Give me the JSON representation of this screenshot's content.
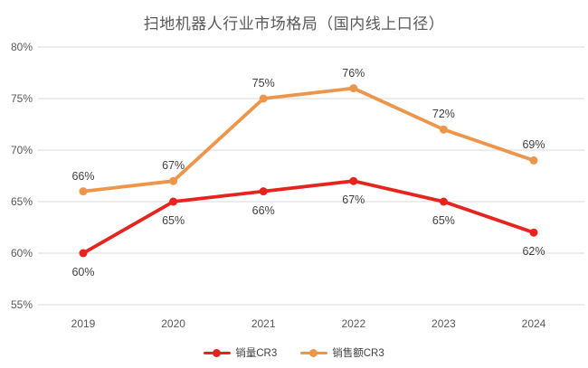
{
  "chart_data": {
    "type": "line",
    "title": "扫地机器人行业市场格局（国内线上口径）",
    "xlabel": "",
    "ylabel": "",
    "categories": [
      "2019",
      "2020",
      "2021",
      "2022",
      "2023",
      "2024"
    ],
    "series": [
      {
        "id": "sales-volume-cr3",
        "name": "销量CR3",
        "color": "#e7231e",
        "values": [
          60,
          65,
          66,
          67,
          65,
          62
        ],
        "data_labels": [
          "60%",
          "65%",
          "66%",
          "67%",
          "65%",
          "62%"
        ],
        "label_position": "below"
      },
      {
        "id": "sales-value-cr3",
        "name": "销售额CR3",
        "color": "#ed964b",
        "values": [
          66,
          67,
          75,
          76,
          72,
          69
        ],
        "data_labels": [
          "66%",
          "67%",
          "75%",
          "76%",
          "72%",
          "69%"
        ],
        "label_position": "above"
      }
    ],
    "ylim": [
      55,
      80
    ],
    "yticks": [
      {
        "value": 80,
        "label": "80%"
      },
      {
        "value": 75,
        "label": "75%"
      },
      {
        "value": 70,
        "label": "70%"
      },
      {
        "value": 65,
        "label": "65%"
      },
      {
        "value": 60,
        "label": "60%"
      },
      {
        "value": 55,
        "label": "55%"
      }
    ],
    "grid": true,
    "legend_position": "bottom",
    "legend": [
      {
        "id": "sales-volume-cr3",
        "label": "销量CR3",
        "color": "#e7231e"
      },
      {
        "id": "sales-value-cr3",
        "label": "销售额CR3",
        "color": "#ed964b"
      }
    ],
    "colors": {
      "gridline": "#d9d9d9",
      "axis_text": "#595959",
      "data_label_text": "#404040",
      "title_text": "#595959",
      "background": "#ffffff"
    }
  }
}
